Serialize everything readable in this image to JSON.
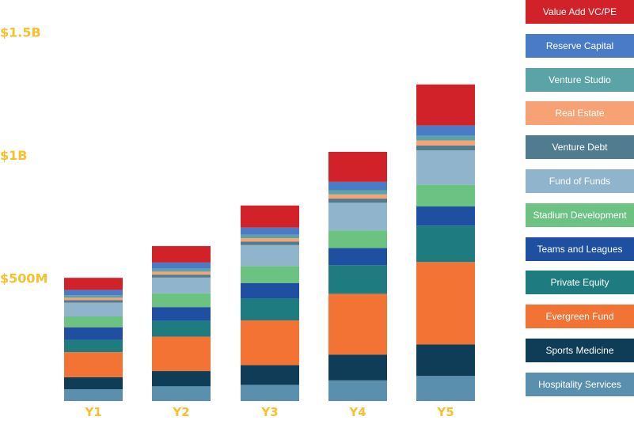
{
  "chart_data": {
    "type": "bar",
    "stacked": true,
    "categories": [
      "Y1",
      "Y2",
      "Y3",
      "Y4",
      "Y5"
    ],
    "y_ticks": [
      {
        "value": 500,
        "label": "$500M"
      },
      {
        "value": 1000,
        "label": "$1B"
      },
      {
        "value": 1500,
        "label": "$1.5B"
      }
    ],
    "ylim": [
      0,
      1500
    ],
    "unit": "$M",
    "grid": false,
    "legend_position": "right",
    "series": [
      {
        "name": "Hospitality Services",
        "color": "#5a90ad",
        "values": [
          48,
          60,
          66,
          84,
          102
        ]
      },
      {
        "name": "Sports Medicine",
        "color": "#0f3d58",
        "values": [
          49,
          62,
          80,
          105,
          128
        ]
      },
      {
        "name": "Evergreen Fund",
        "color": "#f37335",
        "values": [
          102,
          140,
          182,
          247,
          335
        ]
      },
      {
        "name": "Private Equity",
        "color": "#1e7b80",
        "values": [
          50,
          64,
          90,
          116,
          148
        ]
      },
      {
        "name": "Teams and Leagues",
        "color": "#1e4fa0",
        "values": [
          51,
          56,
          62,
          70,
          78
        ]
      },
      {
        "name": "Stadium Development",
        "color": "#6cc381",
        "values": [
          44,
          56,
          69,
          72,
          88
        ]
      },
      {
        "name": "Fund of Funds",
        "color": "#8fb4cb",
        "values": [
          56,
          64,
          85,
          112,
          140
        ]
      },
      {
        "name": "Venture Debt",
        "color": "#517c8f",
        "values": [
          10,
          12,
          14,
          17,
          20
        ]
      },
      {
        "name": "Real Estate",
        "color": "#f7a275",
        "values": [
          10,
          12,
          14,
          17,
          20
        ]
      },
      {
        "name": "Venture Studio",
        "color": "#5ba3a6",
        "values": [
          10,
          12,
          14,
          17,
          20
        ]
      },
      {
        "name": "Reserve Capital",
        "color": "#4a7bc7",
        "values": [
          22,
          25,
          29,
          34,
          41
        ]
      },
      {
        "name": "Value Add VC/PE",
        "color": "#d12229",
        "values": [
          49,
          67,
          90,
          122,
          167
        ]
      }
    ]
  },
  "colors": {
    "axis_text": "#f5c12f"
  }
}
